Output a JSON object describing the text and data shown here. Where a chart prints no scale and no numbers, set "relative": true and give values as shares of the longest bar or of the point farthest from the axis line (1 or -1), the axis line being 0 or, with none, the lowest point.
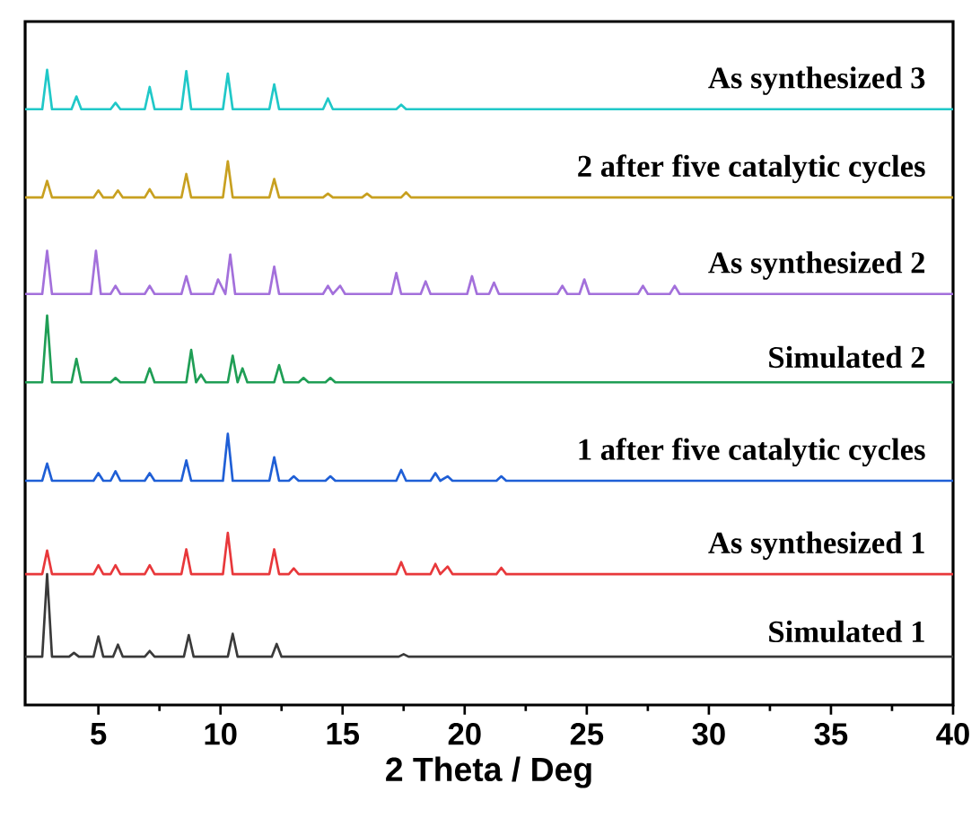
{
  "chart_data": {
    "type": "line",
    "relative": true,
    "xlabel": "2 Theta / Deg",
    "xlim": [
      2,
      40
    ],
    "xticks": [
      5,
      10,
      15,
      20,
      25,
      30,
      35,
      40
    ],
    "legend": false,
    "grid": false,
    "marker": "none",
    "line_style": "solid",
    "series": [
      {
        "name": "Simulated 1",
        "color": "#3a3a3a",
        "x": [
          2,
          2.7,
          2.9,
          3.1,
          3.8,
          4.0,
          4.2,
          4.8,
          5.0,
          5.2,
          5.6,
          5.8,
          6.0,
          6.9,
          7.1,
          7.3,
          8.5,
          8.7,
          8.9,
          10.3,
          10.5,
          10.7,
          12.1,
          12.3,
          12.5,
          17.3,
          17.5,
          17.7,
          40
        ],
        "values": [
          0.076,
          0.076,
          0.206,
          0.076,
          0.076,
          0.082,
          0.076,
          0.076,
          0.108,
          0.076,
          0.076,
          0.095,
          0.076,
          0.076,
          0.085,
          0.076,
          0.076,
          0.11,
          0.076,
          0.076,
          0.112,
          0.076,
          0.076,
          0.096,
          0.076,
          0.076,
          0.08,
          0.076,
          0.076
        ]
      },
      {
        "name": "As synthesized 1",
        "color": "#e8383b",
        "x": [
          2,
          2.7,
          2.9,
          3.1,
          4.8,
          5.0,
          5.2,
          5.5,
          5.7,
          5.9,
          6.9,
          7.1,
          7.3,
          8.4,
          8.6,
          8.8,
          10.1,
          10.3,
          10.5,
          12.0,
          12.2,
          12.4,
          12.8,
          13.0,
          13.2,
          17.2,
          17.4,
          17.6,
          18.6,
          18.8,
          19.0,
          19.3,
          19.5,
          21.3,
          21.5,
          21.7,
          40
        ],
        "values": [
          0.206,
          0.206,
          0.243,
          0.206,
          0.206,
          0.22,
          0.206,
          0.206,
          0.22,
          0.206,
          0.206,
          0.22,
          0.206,
          0.206,
          0.245,
          0.206,
          0.206,
          0.271,
          0.206,
          0.206,
          0.245,
          0.206,
          0.206,
          0.215,
          0.206,
          0.206,
          0.225,
          0.206,
          0.206,
          0.222,
          0.206,
          0.218,
          0.206,
          0.206,
          0.216,
          0.206,
          0.206
        ]
      },
      {
        "name": "1 after five catalytic cycles",
        "color": "#1f5fd6",
        "x": [
          2,
          2.7,
          2.9,
          3.1,
          4.8,
          5.0,
          5.2,
          5.5,
          5.7,
          5.9,
          6.9,
          7.1,
          7.3,
          8.4,
          8.6,
          8.8,
          10.1,
          10.3,
          10.5,
          12.0,
          12.2,
          12.4,
          12.8,
          13.0,
          13.2,
          14.3,
          14.5,
          14.7,
          17.2,
          17.4,
          17.6,
          18.6,
          18.8,
          19.0,
          19.3,
          19.5,
          21.3,
          21.5,
          21.7,
          40
        ],
        "values": [
          0.353,
          0.353,
          0.38,
          0.353,
          0.353,
          0.365,
          0.353,
          0.353,
          0.368,
          0.353,
          0.353,
          0.365,
          0.353,
          0.353,
          0.385,
          0.353,
          0.353,
          0.427,
          0.353,
          0.353,
          0.39,
          0.353,
          0.353,
          0.36,
          0.353,
          0.353,
          0.36,
          0.353,
          0.353,
          0.37,
          0.353,
          0.353,
          0.365,
          0.353,
          0.36,
          0.353,
          0.353,
          0.36,
          0.353,
          0.353
        ]
      },
      {
        "name": "Simulated 2",
        "color": "#1f9e55",
        "x": [
          2,
          2.7,
          2.9,
          3.1,
          3.9,
          4.1,
          4.3,
          5.5,
          5.7,
          5.9,
          6.9,
          7.1,
          7.3,
          8.6,
          8.8,
          9.0,
          9.2,
          9.4,
          10.3,
          10.5,
          10.7,
          10.9,
          11.1,
          12.2,
          12.4,
          12.6,
          13.2,
          13.4,
          13.6,
          14.3,
          14.5,
          14.7,
          40
        ],
        "values": [
          0.508,
          0.508,
          0.613,
          0.508,
          0.508,
          0.545,
          0.508,
          0.508,
          0.515,
          0.508,
          0.508,
          0.53,
          0.508,
          0.508,
          0.559,
          0.508,
          0.52,
          0.508,
          0.508,
          0.55,
          0.508,
          0.53,
          0.508,
          0.508,
          0.535,
          0.508,
          0.508,
          0.515,
          0.508,
          0.508,
          0.515,
          0.508,
          0.508
        ]
      },
      {
        "name": "As synthesized 2",
        "color": "#a370db",
        "x": [
          2,
          2.7,
          2.9,
          3.1,
          4.7,
          4.9,
          5.1,
          5.5,
          5.7,
          5.9,
          6.9,
          7.1,
          7.3,
          8.4,
          8.6,
          8.8,
          9.7,
          9.9,
          10.2,
          10.4,
          10.6,
          12.0,
          12.2,
          12.4,
          14.2,
          14.4,
          14.6,
          14.9,
          15.1,
          17.0,
          17.2,
          17.4,
          18.2,
          18.4,
          18.6,
          20.1,
          20.3,
          20.5,
          21.0,
          21.2,
          21.4,
          23.8,
          24.0,
          24.2,
          24.7,
          24.9,
          25.1,
          27.1,
          27.3,
          27.5,
          28.4,
          28.6,
          28.8,
          40
        ],
        "values": [
          0.647,
          0.647,
          0.715,
          0.647,
          0.647,
          0.715,
          0.647,
          0.647,
          0.66,
          0.647,
          0.647,
          0.66,
          0.647,
          0.647,
          0.675,
          0.647,
          0.647,
          0.67,
          0.647,
          0.709,
          0.647,
          0.647,
          0.69,
          0.647,
          0.647,
          0.66,
          0.647,
          0.66,
          0.647,
          0.647,
          0.68,
          0.647,
          0.647,
          0.667,
          0.647,
          0.647,
          0.675,
          0.647,
          0.647,
          0.665,
          0.647,
          0.647,
          0.66,
          0.647,
          0.647,
          0.67,
          0.647,
          0.647,
          0.66,
          0.647,
          0.647,
          0.66,
          0.647,
          0.647
        ]
      },
      {
        "name": "2 after five catalytic cycles",
        "color": "#c8a020",
        "x": [
          2,
          2.7,
          2.9,
          3.1,
          4.8,
          5.0,
          5.2,
          5.6,
          5.8,
          6.0,
          6.9,
          7.1,
          7.3,
          8.4,
          8.6,
          8.8,
          10.1,
          10.3,
          10.5,
          12.0,
          12.2,
          12.4,
          14.2,
          14.4,
          14.6,
          15.8,
          16.0,
          16.2,
          17.4,
          17.6,
          17.8,
          40
        ],
        "values": [
          0.799,
          0.799,
          0.825,
          0.799,
          0.799,
          0.81,
          0.799,
          0.799,
          0.81,
          0.799,
          0.799,
          0.812,
          0.799,
          0.799,
          0.836,
          0.799,
          0.799,
          0.856,
          0.799,
          0.799,
          0.828,
          0.799,
          0.799,
          0.805,
          0.799,
          0.799,
          0.805,
          0.799,
          0.799,
          0.807,
          0.799,
          0.799
        ]
      },
      {
        "name": "As synthesized 3",
        "color": "#20c8c8",
        "x": [
          2,
          2.7,
          2.9,
          3.1,
          3.9,
          4.1,
          4.3,
          5.5,
          5.7,
          5.9,
          6.9,
          7.1,
          7.3,
          8.4,
          8.6,
          8.8,
          10.1,
          10.3,
          10.5,
          12.0,
          12.2,
          12.4,
          14.2,
          14.4,
          14.6,
          17.2,
          17.4,
          17.6,
          40
        ],
        "values": [
          0.938,
          0.938,
          1.0,
          0.938,
          0.938,
          0.958,
          0.938,
          0.938,
          0.948,
          0.938,
          0.938,
          0.973,
          0.938,
          0.938,
          0.998,
          0.938,
          0.938,
          0.994,
          0.938,
          0.938,
          0.977,
          0.938,
          0.938,
          0.955,
          0.938,
          0.938,
          0.945,
          0.938,
          0.938
        ]
      }
    ]
  }
}
